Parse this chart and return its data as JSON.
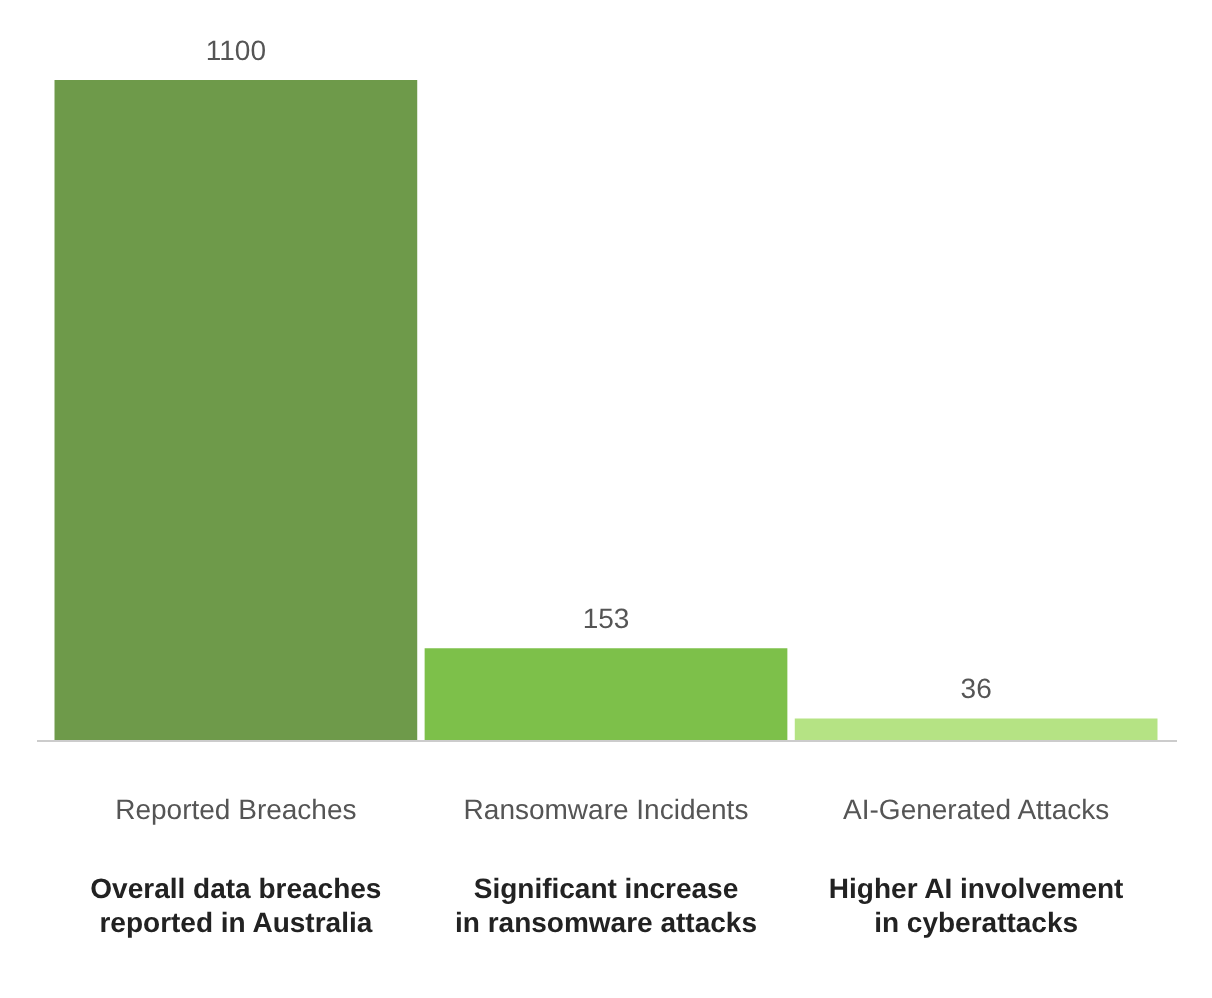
{
  "chart_data": {
    "type": "bar",
    "categories": [
      "Reported Breaches",
      "Ransomware Incidents",
      "AI-Generated Attacks"
    ],
    "values": [
      1100,
      153,
      36
    ],
    "colors": [
      "#6e9a4a",
      "#7dc04a",
      "#b5e384"
    ],
    "data_labels": true,
    "annotations": [
      "Overall data breaches reported in Australia",
      "Significant increase in ransomware attacks",
      "Higher AI involvement in cyberattacks"
    ]
  }
}
